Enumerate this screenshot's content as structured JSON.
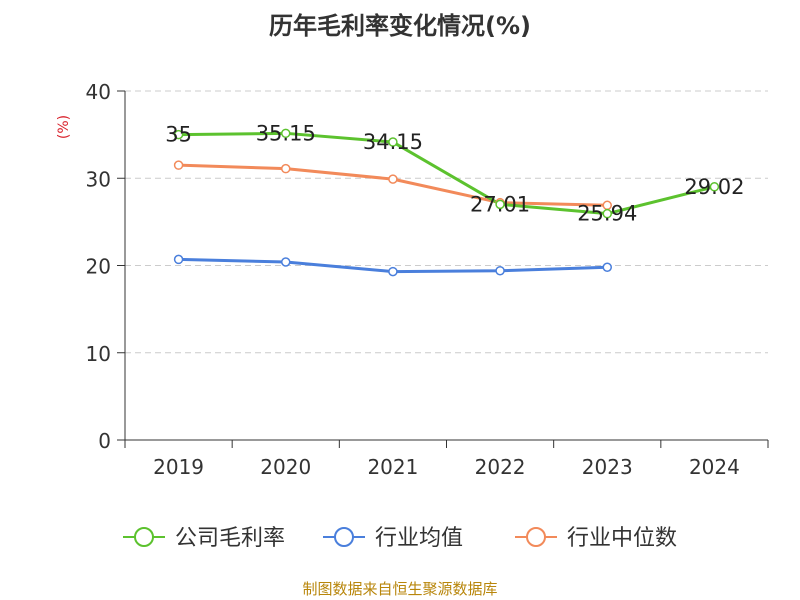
{
  "chart_data": {
    "type": "line",
    "title": "历年毛利率变化情况(%)",
    "ylabel": "(%)",
    "xlabel": "",
    "categories": [
      "2019",
      "2020",
      "2021",
      "2022",
      "2023",
      "2024"
    ],
    "ylim": [
      0,
      40
    ],
    "yticks": [
      0,
      10,
      20,
      30,
      40
    ],
    "grid": true,
    "legend_position": "bottom",
    "series": [
      {
        "name": "公司毛利率",
        "color": "#5cc22e",
        "values": [
          35,
          35.15,
          34.15,
          27.01,
          25.94,
          29.02
        ],
        "labels": [
          "35",
          "35.15",
          "34.15",
          "27.01",
          "25.94",
          "29.02"
        ]
      },
      {
        "name": "行业均值",
        "color": "#4a7fdc",
        "values": [
          20.7,
          20.4,
          19.3,
          19.4,
          19.8,
          null
        ]
      },
      {
        "name": "行业中位数",
        "color": "#f28a5a",
        "values": [
          31.5,
          31.1,
          29.9,
          27.2,
          26.9,
          null
        ]
      }
    ]
  },
  "source": "制图数据来自恒生聚源数据库"
}
